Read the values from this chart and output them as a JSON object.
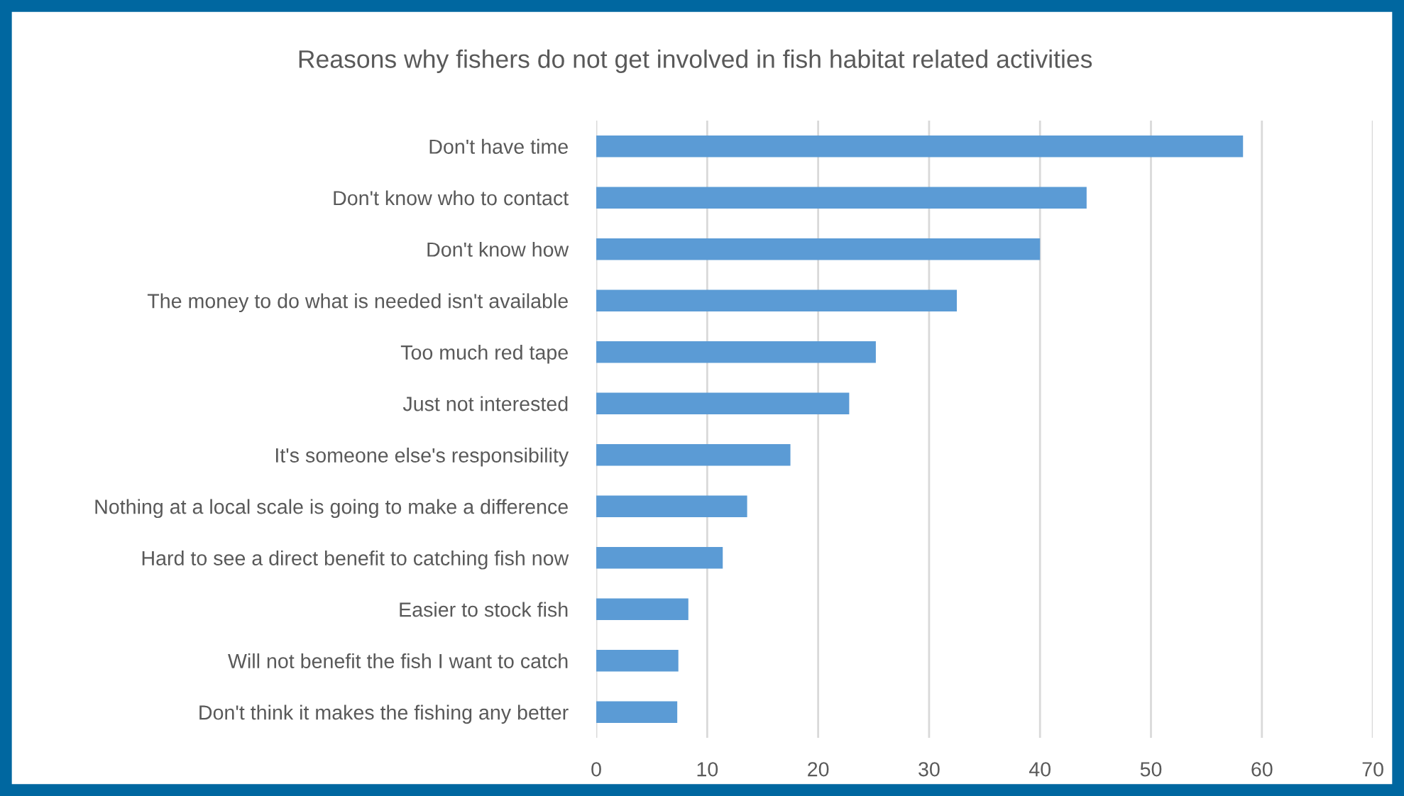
{
  "chart_data": {
    "type": "bar",
    "orientation": "horizontal",
    "title": "Reasons why fishers do not get involved in fish habitat related activities",
    "categories": [
      "Don't have time",
      "Don't know who to contact",
      "Don't know how",
      "The money to do what is needed isn't available",
      "Too much red tape",
      "Just not interested",
      "It's someone else's responsibility",
      "Nothing at a local scale is going to make a difference",
      "Hard to see a direct benefit to catching fish now",
      "Easier to stock fish",
      "Will not benefit the fish I want to catch",
      "Don't think it makes the fishing any better"
    ],
    "values": [
      58.3,
      44.2,
      40.0,
      32.5,
      25.2,
      22.8,
      17.5,
      13.6,
      11.4,
      8.3,
      7.4,
      7.3
    ],
    "color": "#5b9bd5",
    "xlim": [
      0,
      70
    ],
    "xticks": [
      0,
      10,
      20,
      30,
      40,
      50,
      60,
      70
    ],
    "grid": "x"
  }
}
